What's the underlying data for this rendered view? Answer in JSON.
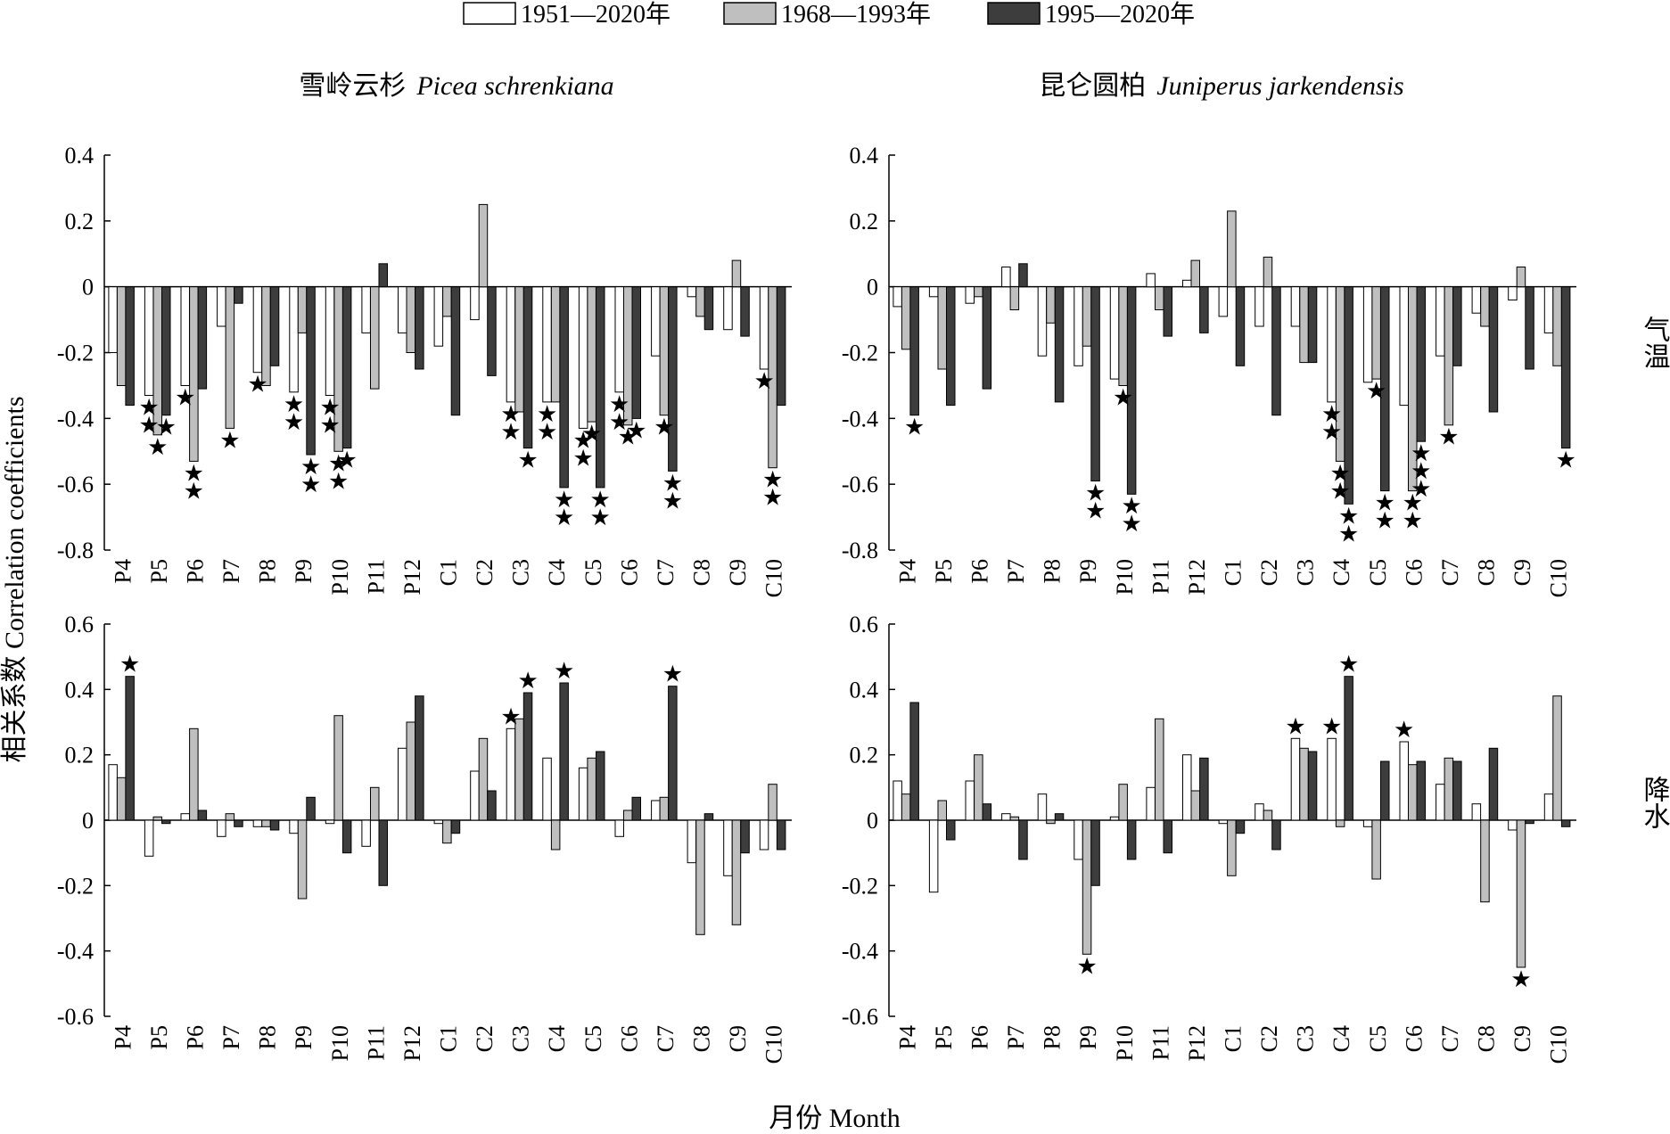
{
  "chart_data": {
    "type": "bar",
    "legend": {
      "placement": "top-center",
      "entries": [
        "1951—2020年",
        "1968—1993年",
        "1995—2020年"
      ],
      "colors": [
        "#ffffff",
        "#bfbfbf",
        "#3d3d3d"
      ]
    },
    "species_titles": [
      {
        "cn": "雪岭云杉",
        "sci": "Picea schrenkiana"
      },
      {
        "cn": "昆仑圆柏",
        "sci": "Juniperus jarkendensis"
      }
    ],
    "ylabel": "相关系数 Correlation coefficients",
    "xlabel": "月份 Month",
    "categories": [
      "P4",
      "P5",
      "P6",
      "P7",
      "P8",
      "P9",
      "P10",
      "P11",
      "P12",
      "C1",
      "C2",
      "C3",
      "C4",
      "C5",
      "C6",
      "C7",
      "C8",
      "C9",
      "C10"
    ],
    "panels": [
      {
        "id": "temp-picea",
        "side_label": "",
        "ylim": [
          -0.8,
          0.4
        ],
        "yticks": [
          "0.4",
          "0.2",
          "0",
          "-0.2",
          "-0.4",
          "-0.6",
          "-0.8"
        ],
        "series": [
          {
            "values": [
              -0.2,
              -0.33,
              -0.3,
              -0.12,
              -0.26,
              -0.32,
              -0.33,
              -0.14,
              -0.14,
              -0.18,
              -0.1,
              -0.35,
              -0.35,
              -0.43,
              -0.32,
              -0.21,
              -0.03,
              -0.13,
              -0.25
            ]
          },
          {
            "values": [
              -0.3,
              -0.45,
              -0.53,
              -0.43,
              -0.3,
              -0.14,
              -0.5,
              -0.31,
              -0.2,
              -0.09,
              0.25,
              -0.38,
              -0.35,
              -0.41,
              -0.42,
              -0.39,
              -0.09,
              0.08,
              -0.55
            ]
          },
          {
            "values": [
              -0.36,
              -0.39,
              -0.31,
              -0.05,
              -0.24,
              -0.51,
              -0.49,
              0.07,
              -0.25,
              -0.39,
              -0.27,
              -0.49,
              -0.61,
              -0.61,
              -0.4,
              -0.56,
              -0.13,
              -0.15,
              -0.36
            ]
          }
        ],
        "stars": [
          {
            "cat": 1,
            "s": 0,
            "n": 2
          },
          {
            "cat": 1,
            "s": 1,
            "n": 1
          },
          {
            "cat": 1,
            "s": 2,
            "n": 1
          },
          {
            "cat": 2,
            "s": 0,
            "n": 1
          },
          {
            "cat": 2,
            "s": 1,
            "n": 2
          },
          {
            "cat": 3,
            "s": 1,
            "n": 1
          },
          {
            "cat": 4,
            "s": 0,
            "n": 1
          },
          {
            "cat": 5,
            "s": 0,
            "n": 2
          },
          {
            "cat": 5,
            "s": 2,
            "n": 2
          },
          {
            "cat": 6,
            "s": 0,
            "n": 2
          },
          {
            "cat": 6,
            "s": 1,
            "n": 2
          },
          {
            "cat": 6,
            "s": 2,
            "n": 1
          },
          {
            "cat": 11,
            "s": 0,
            "n": 2
          },
          {
            "cat": 11,
            "s": 2,
            "n": 1
          },
          {
            "cat": 12,
            "s": 0,
            "n": 2
          },
          {
            "cat": 12,
            "s": 2,
            "n": 2
          },
          {
            "cat": 13,
            "s": 0,
            "n": 2
          },
          {
            "cat": 13,
            "s": 1,
            "n": 1
          },
          {
            "cat": 13,
            "s": 2,
            "n": 2
          },
          {
            "cat": 14,
            "s": 0,
            "n": 2
          },
          {
            "cat": 14,
            "s": 1,
            "n": 1
          },
          {
            "cat": 14,
            "s": 2,
            "n": 1
          },
          {
            "cat": 15,
            "s": 1,
            "n": 1
          },
          {
            "cat": 15,
            "s": 2,
            "n": 2
          },
          {
            "cat": 18,
            "s": 0,
            "n": 1
          },
          {
            "cat": 18,
            "s": 1,
            "n": 2
          }
        ]
      },
      {
        "id": "temp-juniperus",
        "side_label": "气温",
        "ylim": [
          -0.8,
          0.4
        ],
        "yticks": [
          "0.4",
          "0.2",
          "0",
          "-0.2",
          "-0.4",
          "-0.6",
          "-0.8"
        ],
        "series": [
          {
            "values": [
              -0.06,
              -0.03,
              -0.05,
              0.06,
              -0.21,
              -0.24,
              -0.28,
              0.04,
              0.02,
              -0.09,
              -0.12,
              -0.12,
              -0.35,
              -0.29,
              -0.36,
              -0.21,
              -0.08,
              -0.04,
              -0.14
            ]
          },
          {
            "values": [
              -0.19,
              -0.25,
              -0.03,
              -0.07,
              -0.11,
              -0.18,
              -0.3,
              -0.07,
              0.08,
              0.23,
              0.09,
              -0.23,
              -0.53,
              -0.28,
              -0.62,
              -0.42,
              -0.12,
              0.06,
              -0.24
            ]
          },
          {
            "values": [
              -0.39,
              -0.36,
              -0.31,
              0.07,
              -0.35,
              -0.59,
              -0.63,
              -0.15,
              -0.14,
              -0.24,
              -0.39,
              -0.23,
              -0.66,
              -0.62,
              -0.47,
              -0.24,
              -0.38,
              -0.25,
              -0.49
            ]
          }
        ],
        "stars": [
          {
            "cat": 0,
            "s": 2,
            "n": 1
          },
          {
            "cat": 5,
            "s": 2,
            "n": 2
          },
          {
            "cat": 6,
            "s": 1,
            "n": 1
          },
          {
            "cat": 6,
            "s": 2,
            "n": 2
          },
          {
            "cat": 12,
            "s": 0,
            "n": 2
          },
          {
            "cat": 12,
            "s": 1,
            "n": 2
          },
          {
            "cat": 12,
            "s": 2,
            "n": 2
          },
          {
            "cat": 13,
            "s": 1,
            "n": 1
          },
          {
            "cat": 13,
            "s": 2,
            "n": 2
          },
          {
            "cat": 14,
            "s": 1,
            "n": 2
          },
          {
            "cat": 14,
            "s": 2,
            "n": 3
          },
          {
            "cat": 15,
            "s": 1,
            "n": 1
          },
          {
            "cat": 18,
            "s": 2,
            "n": 1
          }
        ]
      },
      {
        "id": "precip-picea",
        "side_label": "",
        "ylim": [
          -0.6,
          0.6
        ],
        "yticks": [
          "0.6",
          "0.4",
          "0.2",
          "0",
          "-0.2",
          "-0.4",
          "-0.6"
        ],
        "series": [
          {
            "values": [
              0.17,
              -0.11,
              0.02,
              -0.05,
              -0.02,
              -0.04,
              -0.01,
              -0.08,
              0.22,
              -0.01,
              0.15,
              0.28,
              0.19,
              0.16,
              -0.05,
              0.06,
              -0.13,
              -0.17,
              -0.09
            ]
          },
          {
            "values": [
              0.13,
              0.01,
              0.28,
              0.02,
              -0.02,
              -0.24,
              0.32,
              0.1,
              0.3,
              -0.07,
              0.25,
              0.31,
              -0.09,
              0.19,
              0.03,
              0.07,
              -0.35,
              -0.32,
              0.11
            ]
          },
          {
            "values": [
              0.44,
              -0.01,
              0.03,
              -0.02,
              -0.03,
              0.07,
              -0.1,
              -0.2,
              0.38,
              -0.04,
              0.09,
              0.39,
              0.42,
              0.21,
              0.07,
              0.41,
              0.02,
              -0.1,
              -0.09
            ]
          }
        ],
        "stars": [
          {
            "cat": 0,
            "s": 2,
            "n": 1
          },
          {
            "cat": 11,
            "s": 0,
            "n": 1
          },
          {
            "cat": 11,
            "s": 2,
            "n": 1
          },
          {
            "cat": 12,
            "s": 2,
            "n": 1
          },
          {
            "cat": 15,
            "s": 2,
            "n": 1
          }
        ]
      },
      {
        "id": "precip-juniperus",
        "side_label": "降水",
        "ylim": [
          -0.6,
          0.6
        ],
        "yticks": [
          "0.6",
          "0.4",
          "0.2",
          "0",
          "-0.2",
          "-0.4",
          "-0.6"
        ],
        "series": [
          {
            "values": [
              0.12,
              -0.22,
              0.12,
              0.02,
              0.08,
              -0.12,
              0.01,
              0.1,
              0.2,
              -0.01,
              0.05,
              0.25,
              0.25,
              -0.02,
              0.24,
              0.11,
              0.05,
              -0.03,
              0.08
            ]
          },
          {
            "values": [
              0.08,
              0.06,
              0.2,
              0.01,
              -0.01,
              -0.41,
              0.11,
              0.31,
              0.09,
              -0.17,
              0.03,
              0.22,
              -0.02,
              -0.18,
              0.17,
              0.19,
              -0.25,
              -0.45,
              0.38
            ]
          },
          {
            "values": [
              0.36,
              -0.06,
              0.05,
              -0.12,
              0.02,
              -0.2,
              -0.12,
              -0.1,
              0.19,
              -0.04,
              -0.09,
              0.21,
              0.44,
              0.18,
              0.18,
              0.18,
              0.22,
              -0.01,
              -0.02
            ]
          }
        ],
        "stars": [
          {
            "cat": 5,
            "s": 1,
            "n": 1
          },
          {
            "cat": 11,
            "s": 0,
            "n": 1
          },
          {
            "cat": 12,
            "s": 0,
            "n": 1
          },
          {
            "cat": 12,
            "s": 2,
            "n": 1
          },
          {
            "cat": 14,
            "s": 0,
            "n": 1
          },
          {
            "cat": 17,
            "s": 1,
            "n": 1
          }
        ]
      }
    ]
  }
}
